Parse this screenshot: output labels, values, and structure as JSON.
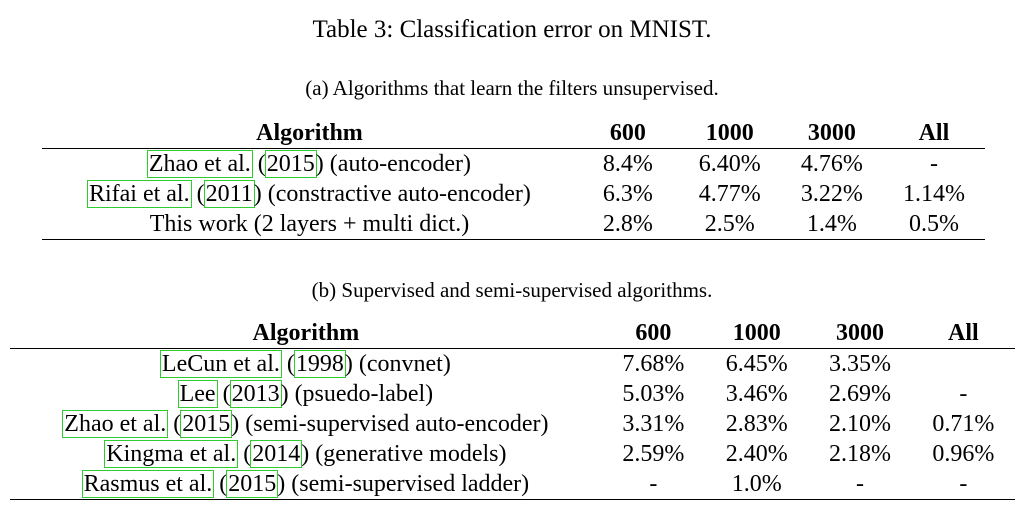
{
  "main_caption": "Table 3: Classification error on MNIST.",
  "table_a": {
    "caption": "(a) Algorithms that learn the filters unsupervised.",
    "headers": [
      "Algorithm",
      "600",
      "1000",
      "3000",
      "All"
    ],
    "rows": [
      {
        "author": "Zhao et al.",
        "year": "2015",
        "desc": "(auto-encoder)",
        "v600": "8.4%",
        "v1000": "6.40%",
        "v3000": "4.76%",
        "all": "-"
      },
      {
        "author": "Rifai et al.",
        "year": "2011",
        "desc": "(constractive auto-encoder)",
        "v600": "6.3%",
        "v1000": "4.77%",
        "v3000": "3.22%",
        "all": "1.14%"
      },
      {
        "label": "This work (2 layers + multi dict.)",
        "v600": "2.8%",
        "v1000": "2.5%",
        "v3000": "1.4%",
        "all": "0.5%"
      }
    ]
  },
  "table_b": {
    "caption": "(b) Supervised and semi-supervised algorithms.",
    "headers": [
      "Algorithm",
      "600",
      "1000",
      "3000",
      "All"
    ],
    "rows": [
      {
        "author": "LeCun et al.",
        "year": "1998",
        "desc": "(convnet)",
        "v600": "7.68%",
        "v1000": "6.45%",
        "v3000": "3.35%",
        "all": ""
      },
      {
        "author": "Lee",
        "year": "2013",
        "desc": "(psuedo-label)",
        "v600": "5.03%",
        "v1000": "3.46%",
        "v3000": "2.69%",
        "all": "-"
      },
      {
        "author": "Zhao et al.",
        "year": "2015",
        "desc": "(semi-supervised auto-encoder)",
        "v600": "3.31%",
        "v1000": "2.83%",
        "v3000": "2.10%",
        "all": "0.71%"
      },
      {
        "author": "Kingma et al.",
        "year": "2014",
        "desc": "(generative models)",
        "v600": "2.59%",
        "v1000": "2.40%",
        "v3000": "2.18%",
        "all": "0.96%"
      },
      {
        "author": "Rasmus et al.",
        "year": "2015",
        "desc": "(semi-supervised ladder)",
        "v600": "-",
        "v1000": "1.0%",
        "v3000": "-",
        "all": "-"
      }
    ]
  },
  "colors": {
    "citation_box": "#2ecc2e"
  }
}
